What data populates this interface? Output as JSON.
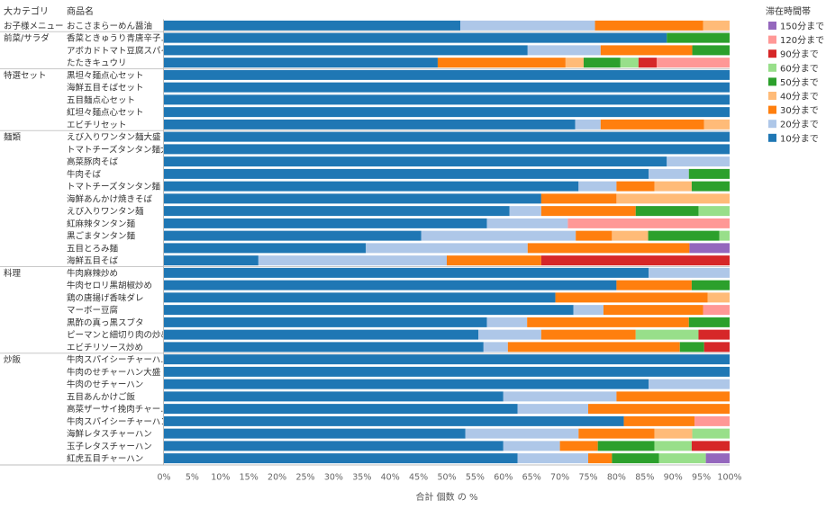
{
  "chart_data": {
    "type": "bar",
    "orientation": "horizontal",
    "stacked": "percent",
    "header": {
      "category": "大カテゴリ",
      "product": "商品名"
    },
    "xlabel": "合計 個数 の %",
    "xlim": [
      0,
      100
    ],
    "xticks": [
      "0%",
      "5%",
      "10%",
      "15%",
      "20%",
      "25%",
      "30%",
      "35%",
      "40%",
      "45%",
      "50%",
      "55%",
      "60%",
      "65%",
      "70%",
      "75%",
      "80%",
      "85%",
      "90%",
      "95%",
      "100%"
    ],
    "legend": {
      "title": "滞在時間帯",
      "position": "right",
      "items": [
        "150分まで",
        "120分まで",
        "90分まで",
        "60分まで",
        "50分まで",
        "40分まで",
        "30分まで",
        "20分まで",
        "10分まで"
      ]
    },
    "series": [
      {
        "name": "10分まで",
        "color": "#1f77b4"
      },
      {
        "name": "20分まで",
        "color": "#aec7e8"
      },
      {
        "name": "30分まで",
        "color": "#ff7f0e"
      },
      {
        "name": "40分まで",
        "color": "#ffbb78"
      },
      {
        "name": "50分まで",
        "color": "#2ca02c"
      },
      {
        "name": "60分まで",
        "color": "#98df8a"
      },
      {
        "name": "90分まで",
        "color": "#d62728"
      },
      {
        "name": "120分まで",
        "color": "#ff9896"
      },
      {
        "name": "150分まで",
        "color": "#9467bd"
      }
    ],
    "groups": [
      {
        "category": "お子様メニュー",
        "rows": [
          {
            "label": "おこさまらーめん醤油",
            "values": [
              52.4,
              23.8,
              19.1,
              4.7,
              0,
              0,
              0,
              0,
              0
            ]
          }
        ]
      },
      {
        "category": "前菜/サラダ",
        "rows": [
          {
            "label": "香菜ときゅうり青唐辛子…",
            "values": [
              88.9,
              0,
              0,
              0,
              11.1,
              0,
              0,
              0,
              0
            ]
          },
          {
            "label": "アボカドトマト豆腐スパイ…",
            "values": [
              64.3,
              12.9,
              16.2,
              0,
              6.6,
              0,
              0,
              0,
              0
            ]
          },
          {
            "label": "たたきキュウリ",
            "values": [
              48.4,
              0,
              22.6,
              3.2,
              6.5,
              3.2,
              3.2,
              12.9,
              0
            ]
          }
        ]
      },
      {
        "category": "特選セット",
        "rows": [
          {
            "label": "黒坦々麺点心セット",
            "values": [
              100,
              0,
              0,
              0,
              0,
              0,
              0,
              0,
              0
            ]
          },
          {
            "label": "海鮮五目そばセット",
            "values": [
              100,
              0,
              0,
              0,
              0,
              0,
              0,
              0,
              0
            ]
          },
          {
            "label": "五目麺点心セット",
            "values": [
              100,
              0,
              0,
              0,
              0,
              0,
              0,
              0,
              0
            ]
          },
          {
            "label": "紅坦々麺点心セット",
            "values": [
              100,
              0,
              0,
              0,
              0,
              0,
              0,
              0,
              0
            ]
          },
          {
            "label": "エビチリセット",
            "values": [
              72.7,
              4.5,
              18.3,
              4.5,
              0,
              0,
              0,
              0,
              0
            ]
          }
        ]
      },
      {
        "category": "麺類",
        "rows": [
          {
            "label": "えび入りワンタン麺大盛",
            "values": [
              100,
              0,
              0,
              0,
              0,
              0,
              0,
              0,
              0
            ]
          },
          {
            "label": "トマトチーズタンタン麺大…",
            "values": [
              100,
              0,
              0,
              0,
              0,
              0,
              0,
              0,
              0
            ]
          },
          {
            "label": "高菜豚肉そば",
            "values": [
              88.9,
              11.1,
              0,
              0,
              0,
              0,
              0,
              0,
              0
            ]
          },
          {
            "label": "牛肉そば",
            "values": [
              85.7,
              7.1,
              0,
              0,
              7.2,
              0,
              0,
              0,
              0
            ]
          },
          {
            "label": "トマトチーズタンタン麺",
            "values": [
              73.3,
              6.7,
              6.7,
              6.6,
              6.7,
              0,
              0,
              0,
              0
            ]
          },
          {
            "label": "海鮮あんかけ焼きそば",
            "values": [
              66.7,
              0,
              13.3,
              20.0,
              0,
              0,
              0,
              0,
              0
            ]
          },
          {
            "label": "えび入りワンタン麺",
            "values": [
              61.1,
              5.6,
              16.7,
              0,
              11.1,
              5.5,
              0,
              0,
              0
            ]
          },
          {
            "label": "紅麻辣タンタン麺",
            "values": [
              57.1,
              14.3,
              0,
              0,
              0,
              0,
              0,
              28.6,
              0
            ]
          },
          {
            "label": "黒ごまタンタン麺",
            "values": [
              45.5,
              27.3,
              6.4,
              6.4,
              12.6,
              1.8,
              0,
              0,
              0
            ]
          },
          {
            "label": "五目とろみ麺",
            "values": [
              35.7,
              28.6,
              28.6,
              0,
              0,
              0,
              0,
              0,
              7.1
            ]
          },
          {
            "label": "海鮮五目そば",
            "values": [
              16.7,
              33.3,
              16.7,
              0,
              0,
              0,
              33.3,
              0,
              0
            ]
          }
        ]
      },
      {
        "category": "料理",
        "rows": [
          {
            "label": "牛肉麻辣炒め",
            "values": [
              85.7,
              14.3,
              0,
              0,
              0,
              0,
              0,
              0,
              0
            ]
          },
          {
            "label": "牛肉セロリ黒胡椒炒め",
            "values": [
              80.0,
              0,
              13.3,
              0,
              6.7,
              0,
              0,
              0,
              0
            ]
          },
          {
            "label": "鶏の唐揚げ香味ダレ",
            "values": [
              69.2,
              0,
              26.9,
              3.9,
              0,
              0,
              0,
              0,
              0
            ]
          },
          {
            "label": "マーボー豆腐",
            "values": [
              72.4,
              5.3,
              17.6,
              0,
              0,
              0,
              0,
              4.7,
              0
            ]
          },
          {
            "label": "黒酢の真っ黒スブタ",
            "values": [
              57.1,
              7.1,
              28.6,
              0,
              7.2,
              0,
              0,
              0,
              0
            ]
          },
          {
            "label": "ピーマンと細切り肉の炒め",
            "values": [
              55.6,
              11.1,
              16.7,
              0,
              0,
              11.1,
              5.5,
              0,
              0
            ]
          },
          {
            "label": "エビチリソース炒め",
            "values": [
              56.5,
              4.3,
              30.4,
              0,
              4.3,
              0,
              4.5,
              0,
              0
            ]
          }
        ]
      },
      {
        "category": "炒飯",
        "rows": [
          {
            "label": "牛肉スパイシーチャーハ…",
            "values": [
              100,
              0,
              0,
              0,
              0,
              0,
              0,
              0,
              0
            ]
          },
          {
            "label": "牛肉のせチャーハン大盛",
            "values": [
              100,
              0,
              0,
              0,
              0,
              0,
              0,
              0,
              0
            ]
          },
          {
            "label": "牛肉のせチャーハン",
            "values": [
              85.7,
              14.3,
              0,
              0,
              0,
              0,
              0,
              0,
              0
            ]
          },
          {
            "label": "五目あんかけご飯",
            "values": [
              60.0,
              20.0,
              20.0,
              0,
              0,
              0,
              0,
              0,
              0
            ]
          },
          {
            "label": "高菜ザーサイ挽肉チャー…",
            "values": [
              62.5,
              12.5,
              25.0,
              0,
              0,
              0,
              0,
              0,
              0
            ]
          },
          {
            "label": "牛肉スパイシーチャーハン",
            "values": [
              81.3,
              0,
              12.5,
              0,
              0,
              0,
              0,
              6.2,
              0
            ]
          },
          {
            "label": "海鮮レタスチャーハン",
            "values": [
              53.3,
              20.0,
              13.4,
              6.7,
              0,
              6.6,
              0,
              0,
              0
            ]
          },
          {
            "label": "玉子レタスチャーハン",
            "values": [
              60.0,
              10.0,
              6.7,
              0,
              10.0,
              6.6,
              6.7,
              0,
              0
            ]
          },
          {
            "label": "紅虎五目チャーハン",
            "values": [
              62.5,
              12.5,
              4.2,
              0,
              8.3,
              8.3,
              0,
              0,
              4.2
            ]
          }
        ]
      }
    ]
  }
}
